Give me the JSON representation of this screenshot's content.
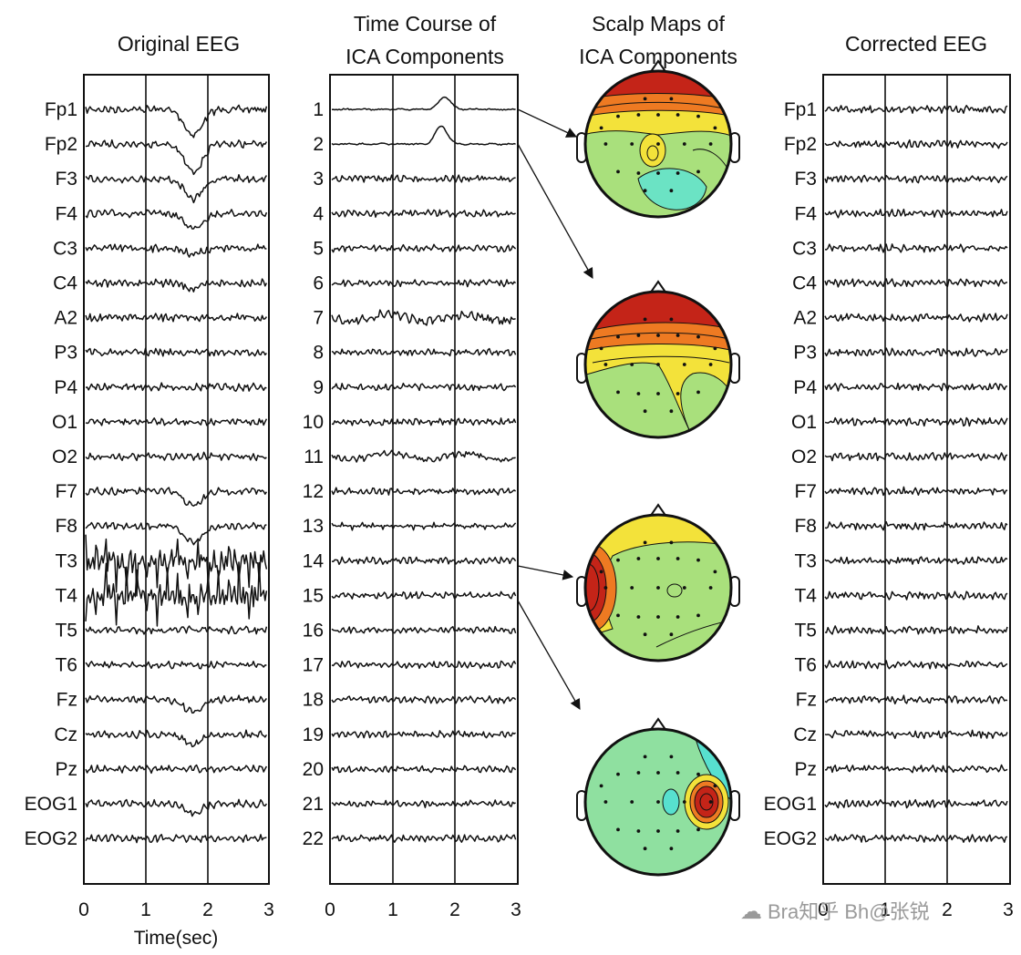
{
  "titles": {
    "original": "Original EEG",
    "timecourse_line1": "Time Course of",
    "timecourse_line2": "ICA Components",
    "scalp_line1": "Scalp Maps of",
    "scalp_line2": "ICA Components",
    "corrected": "Corrected EEG"
  },
  "channels": [
    "Fp1",
    "Fp2",
    "F3",
    "F4",
    "C3",
    "C4",
    "A2",
    "P3",
    "P4",
    "O1",
    "O2",
    "F7",
    "F8",
    "T3",
    "T4",
    "T5",
    "T6",
    "Fz",
    "Cz",
    "Pz",
    "EOG1",
    "EOG2"
  ],
  "components": [
    "1",
    "2",
    "3",
    "4",
    "5",
    "6",
    "7",
    "8",
    "9",
    "10",
    "11",
    "12",
    "13",
    "14",
    "15",
    "16",
    "17",
    "18",
    "19",
    "20",
    "21",
    "22"
  ],
  "x_ticks": [
    "0",
    "1",
    "2",
    "3"
  ],
  "x_label": "Time(sec)",
  "watermark": "Bra知乎 Bh@张锐",
  "colors": {
    "map_red": "#c42418",
    "map_orange": "#ee7a22",
    "map_yellow": "#f3e23a",
    "map_green": "#a9e07c",
    "map_cyan": "#57e0cf",
    "line": "#111111"
  },
  "links": [
    {
      "component": "1",
      "map": 1
    },
    {
      "component": "2",
      "map": 2
    },
    {
      "component": "14",
      "map": 3
    },
    {
      "component": "15",
      "map": 4
    }
  ]
}
